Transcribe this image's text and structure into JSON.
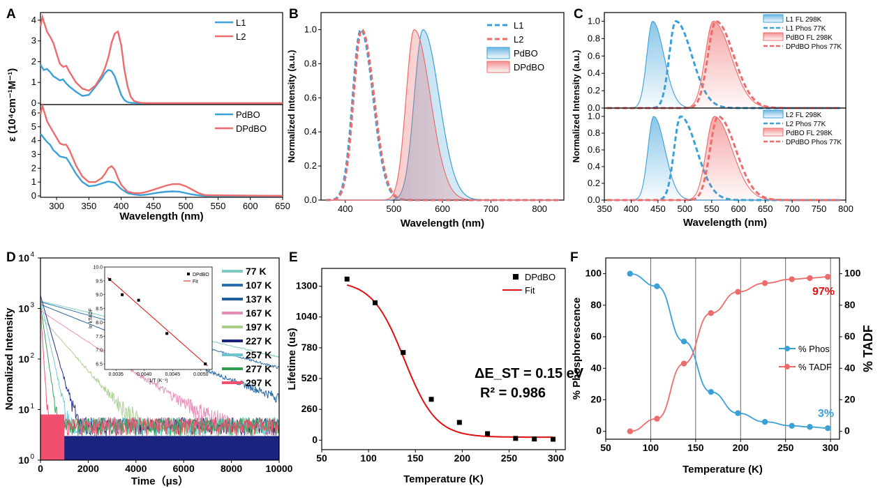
{
  "colors": {
    "blue": "#3aa0d8",
    "red": "#ee6b6b",
    "black": "#000000",
    "fitred": "#e01010"
  },
  "chart_data": [
    {
      "panel": "A",
      "type": "line",
      "xlabel": "Wavelength (nm)",
      "ylabel": "ε (10⁴cm⁻¹M⁻¹)",
      "xlim": [
        275,
        650
      ],
      "xticks": [
        "300",
        "350",
        "400",
        "450",
        "500",
        "550",
        "600",
        "650"
      ],
      "subplots": [
        {
          "ylim": [
            0,
            4.3
          ],
          "yticks": [
            "0",
            "1",
            "2",
            "3",
            "4"
          ],
          "series": [
            {
              "name": "L1",
              "color": "#3aa0d8",
              "x": [
                275,
                280,
                285,
                290,
                295,
                300,
                305,
                310,
                315,
                320,
                330,
                340,
                350,
                360,
                370,
                375,
                380,
                385,
                390,
                395,
                400,
                405,
                410,
                415,
                420,
                430,
                440,
                650
              ],
              "y": [
                1.85,
                1.6,
                1.65,
                1.5,
                1.3,
                1.2,
                1.1,
                1.15,
                0.95,
                0.8,
                0.55,
                0.35,
                0.4,
                0.8,
                1.2,
                1.45,
                1.6,
                1.55,
                1.3,
                0.85,
                0.4,
                0.15,
                0.05,
                0.02,
                0.01,
                0,
                0,
                0
              ]
            },
            {
              "name": "L2",
              "color": "#ee6b6b",
              "x": [
                275,
                278,
                282,
                285,
                290,
                295,
                300,
                305,
                310,
                315,
                320,
                330,
                340,
                350,
                360,
                370,
                375,
                380,
                385,
                390,
                395,
                400,
                405,
                410,
                415,
                420,
                430,
                440,
                650
              ],
              "y": [
                3.7,
                4.15,
                3.75,
                3.45,
                3.2,
                2.9,
                2.4,
                1.9,
                1.75,
                1.8,
                1.5,
                1.0,
                0.7,
                0.6,
                0.85,
                1.35,
                1.7,
                2.2,
                2.9,
                3.35,
                3.45,
                2.8,
                1.6,
                0.8,
                0.3,
                0.1,
                0.02,
                0,
                0
              ]
            }
          ]
        },
        {
          "ylim": [
            0,
            6.5
          ],
          "yticks": [
            "0",
            "1",
            "2",
            "3",
            "4",
            "5",
            "6"
          ],
          "series": [
            {
              "name": "PdBO",
              "color": "#3aa0d8",
              "x": [
                275,
                280,
                285,
                290,
                295,
                300,
                305,
                310,
                315,
                320,
                330,
                340,
                350,
                360,
                370,
                380,
                390,
                400,
                410,
                420,
                430,
                440,
                450,
                460,
                470,
                480,
                490,
                500,
                510,
                520,
                530,
                650
              ],
              "y": [
                4.5,
                4.2,
                3.9,
                3.7,
                3.3,
                3.1,
                2.85,
                2.8,
                2.75,
                2.4,
                1.6,
                1.0,
                0.7,
                0.75,
                0.9,
                1.05,
                0.95,
                0.5,
                0.2,
                0.1,
                0.05,
                0.1,
                0.18,
                0.25,
                0.3,
                0.33,
                0.3,
                0.2,
                0.1,
                0.04,
                0,
                0
              ]
            },
            {
              "name": "DPdBO",
              "color": "#ee6b6b",
              "x": [
                275,
                278,
                282,
                285,
                290,
                295,
                300,
                305,
                310,
                315,
                320,
                330,
                340,
                350,
                360,
                370,
                375,
                380,
                385,
                390,
                395,
                400,
                410,
                420,
                430,
                440,
                450,
                460,
                470,
                480,
                490,
                500,
                510,
                520,
                530,
                650
              ],
              "y": [
                5.9,
                6.5,
                5.9,
                5.4,
                5.0,
                4.6,
                4.2,
                3.8,
                3.7,
                3.7,
                3.3,
                2.2,
                1.4,
                1.0,
                1.0,
                1.3,
                1.6,
                2.0,
                2.15,
                1.9,
                1.3,
                0.8,
                0.3,
                0.2,
                0.2,
                0.3,
                0.45,
                0.6,
                0.75,
                0.85,
                0.85,
                0.7,
                0.45,
                0.2,
                0.05,
                0
              ]
            }
          ]
        }
      ],
      "legend": [
        "L1",
        "L2",
        "PdBO",
        "DPdBO"
      ]
    },
    {
      "panel": "B",
      "type": "area",
      "xlabel": "Wavelength (nm)",
      "ylabel": "Normalized Intensity (a.u.)",
      "xlim": [
        350,
        850
      ],
      "ylim": [
        0,
        1.1
      ],
      "xticks": [
        "400",
        "500",
        "600",
        "700",
        "800"
      ],
      "yticks": [
        "0.0",
        "0.2",
        "0.4",
        "0.6",
        "0.8",
        "1.0"
      ],
      "series": [
        {
          "name": "L1",
          "style": "dashed",
          "color": "#3aa0d8",
          "peak": 432,
          "width_left": 28,
          "width_right": 42
        },
        {
          "name": "L2",
          "style": "dashed",
          "color": "#ee6b6b",
          "peak": 434,
          "width_left": 28,
          "width_right": 42
        },
        {
          "name": "PdBO",
          "style": "filled",
          "color": "#3aa0d8",
          "peak": 560,
          "width_left": 30,
          "width_right": 55
        },
        {
          "name": "DPdBO",
          "style": "filled",
          "color": "#ee6b6b",
          "peak": 542,
          "width_left": 28,
          "width_right": 55
        }
      ]
    },
    {
      "panel": "C",
      "type": "area",
      "xlabel": "Wavelength (nm)",
      "ylabel": "Normalized Intensity (a.u.)",
      "xlim": [
        350,
        800
      ],
      "xticks": [
        "350",
        "400",
        "450",
        "500",
        "550",
        "600",
        "650",
        "700",
        "750",
        "800"
      ],
      "subplots": [
        {
          "ylim": [
            0,
            1.1
          ],
          "yticks": [
            "0.0",
            "0.2",
            "0.4",
            "0.6",
            "0.8",
            "1.0"
          ],
          "legend": [
            "L1 FL 298K",
            "L1 Phos 77K",
            "PdBO FL 298K",
            "DPdBO Phos 77K"
          ],
          "series": [
            {
              "name": "L1 FL 298K",
              "style": "filled",
              "color": "#3aa0d8",
              "peak": 440,
              "width_left": 18,
              "width_right": 35
            },
            {
              "name": "L1 Phos 77K",
              "style": "dashed",
              "color": "#3aa0d8",
              "peak": 483,
              "width_left": 20,
              "width_right": 50
            },
            {
              "name": "PdBO FL 298K",
              "style": "filled",
              "color": "#ee6b6b",
              "peak": 553,
              "width_left": 25,
              "width_right": 55
            },
            {
              "name": "DPdBO Phos 77K",
              "style": "dashed",
              "color": "#ee6b6b",
              "peak": 558,
              "width_left": 25,
              "width_right": 55
            }
          ]
        },
        {
          "ylim": [
            0,
            1.1
          ],
          "yticks": [
            "0.0",
            "0.2",
            "0.4",
            "0.6",
            "0.8",
            "1.0"
          ],
          "legend": [
            "L2 FL 298K",
            "L2 Phos 77K",
            "PdBO FL 298K",
            "DPdBO Phos 77K"
          ],
          "series": [
            {
              "name": "L2 FL 298K",
              "style": "filled",
              "color": "#3aa0d8",
              "peak": 442,
              "width_left": 18,
              "width_right": 35
            },
            {
              "name": "L2 Phos 77K",
              "style": "dashed",
              "color": "#3aa0d8",
              "peak": 492,
              "width_left": 20,
              "width_right": 50
            },
            {
              "name": "PdBO FL 298K",
              "style": "filled",
              "color": "#ee6b6b",
              "peak": 555,
              "width_left": 25,
              "width_right": 55
            },
            {
              "name": "DPdBO Phos 77K",
              "style": "dashed",
              "color": "#ee6b6b",
              "peak": 562,
              "width_left": 25,
              "width_right": 55
            }
          ]
        }
      ]
    },
    {
      "panel": "D",
      "type": "line",
      "xlabel": "Time（μs）",
      "ylabel": "Normalized Intensity",
      "xlim": [
        0,
        10000
      ],
      "yscale": "log",
      "ylim": [
        1,
        10000
      ],
      "xticks": [
        "0",
        "2000",
        "4000",
        "6000",
        "8000",
        "10000"
      ],
      "series": [
        {
          "name": "77 K",
          "color": "#7fcac0",
          "tau": 3900,
          "a0": 1400
        },
        {
          "name": "107 K",
          "color": "#2a6fb0",
          "tau": 3300,
          "a0": 1350
        },
        {
          "name": "137 K",
          "color": "#1f5fa0",
          "tau": 2300,
          "a0": 1200
        },
        {
          "name": "167 K",
          "color": "#e58bb8",
          "tau": 1400,
          "a0": 900
        },
        {
          "name": "197 K",
          "color": "#a7d08c",
          "tau": 800,
          "a0": 700
        },
        {
          "name": "227 K",
          "color": "#1a237e",
          "tau": 260,
          "a0": 1800
        },
        {
          "name": "257 K",
          "color": "#6cc4d0",
          "tau": 200,
          "a0": 1500
        },
        {
          "name": "277 K",
          "color": "#2e9e4f",
          "tau": 130,
          "a0": 1200
        },
        {
          "name": "297 K",
          "color": "#f0506e",
          "tau": 60,
          "a0": 1000
        }
      ],
      "inset": {
        "xlabel": "1/T (K⁻¹)",
        "ylabel": "ln kTADF",
        "xticks": [
          "0.0035",
          "0.0040",
          "0.0045",
          "0.0050"
        ],
        "yticks": [
          "6.5",
          "7.0",
          "7.5",
          "8.0",
          "8.5",
          "9.0",
          "9.5",
          "10.0"
        ],
        "xlim": [
          0.0033,
          0.0052
        ],
        "ylim": [
          6.3,
          10.0
        ],
        "points_x": [
          0.00339,
          0.00361,
          0.0039,
          0.0044,
          0.00508
        ],
        "points_y": [
          9.55,
          9.0,
          8.8,
          7.6,
          6.5
        ],
        "legend": [
          "DPdBO",
          "Fit"
        ]
      }
    },
    {
      "panel": "E",
      "type": "scatter",
      "xlabel": "Temperature (K)",
      "ylabel": "Lifetime (us)",
      "xlim": [
        50,
        310
      ],
      "ylim": [
        -80,
        1450
      ],
      "xticks": [
        "50",
        "100",
        "150",
        "200",
        "250",
        "300"
      ],
      "yticks": [
        "0",
        "260",
        "520",
        "780",
        "1040",
        "1300"
      ],
      "series": [
        {
          "name": "DPdBO",
          "x": [
            77,
            107,
            137,
            167,
            197,
            227,
            257,
            277,
            297
          ],
          "y": [
            1360,
            1160,
            740,
            345,
            150,
            55,
            15,
            10,
            8
          ]
        },
        {
          "name": "Fit",
          "type": "line"
        }
      ],
      "annotations": [
        "ΔE_ST = 0.15 eV",
        "R² = 0.986"
      ]
    },
    {
      "panel": "F",
      "type": "line",
      "xlabel": "Temperature (K)",
      "ylabel": "% Phosphorescence",
      "ylabel2": "% TADF",
      "xlim": [
        50,
        310
      ],
      "ylim": [
        -5,
        110
      ],
      "xticks": [
        "50",
        "100",
        "150",
        "200",
        "250",
        "300"
      ],
      "yticks": [
        "0",
        "20",
        "40",
        "60",
        "80",
        "100"
      ],
      "vlines": [
        100,
        150,
        200,
        250,
        300
      ],
      "series": [
        {
          "name": "% Phos",
          "color": "#3aa0d8",
          "x": [
            77,
            107,
            137,
            167,
            197,
            227,
            257,
            277,
            297
          ],
          "y": [
            100,
            92,
            57,
            25,
            11.5,
            6,
            3.5,
            2.8,
            2
          ]
        },
        {
          "name": "% TADF",
          "color": "#ee6b6b",
          "x": [
            77,
            107,
            137,
            167,
            197,
            227,
            257,
            277,
            297
          ],
          "y": [
            0,
            8,
            43,
            75,
            88.5,
            94,
            96.5,
            97.2,
            98
          ]
        }
      ],
      "annotations": [
        "97%",
        "3%"
      ]
    }
  ]
}
